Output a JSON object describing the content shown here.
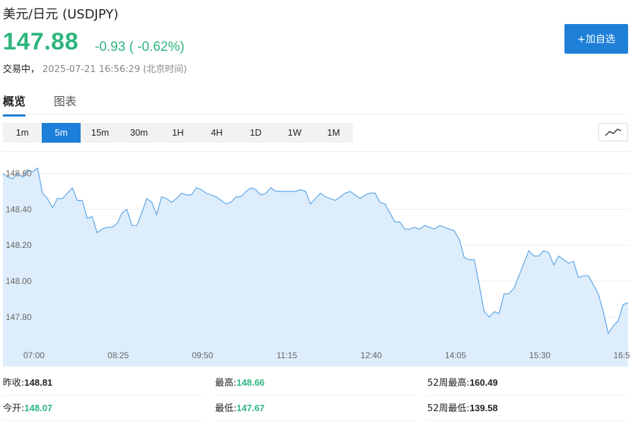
{
  "header": {
    "name": "美元/日元",
    "code": "(USDJPY)",
    "price": "147.88",
    "change": "-0.93 ( -0.62%)",
    "status": "交易中，",
    "timestamp": "2025-07-21 16:56:29 (北京时间)",
    "watch_button": "+加自选"
  },
  "tabs": [
    {
      "label": "概览",
      "active": true
    },
    {
      "label": "图表",
      "active": false
    }
  ],
  "periods": [
    {
      "label": "1m",
      "active": false
    },
    {
      "label": "5m",
      "active": true
    },
    {
      "label": "15m",
      "active": false
    },
    {
      "label": "30m",
      "active": false
    },
    {
      "label": "1H",
      "active": false
    },
    {
      "label": "4H",
      "active": false
    },
    {
      "label": "1D",
      "active": false
    },
    {
      "label": "1W",
      "active": false
    },
    {
      "label": "1M",
      "active": false
    }
  ],
  "chart_type_icon": "line-chart-icon",
  "colors": {
    "accent": "#1e7fd8",
    "down": "#2eb67d",
    "line": "#5ba5e6",
    "fill": "#deedfb"
  },
  "chart_data": {
    "type": "area",
    "yticks": [
      "148.60",
      "148.40",
      "148.20",
      "148.00",
      "147.80"
    ],
    "ytick_values": [
      148.6,
      148.4,
      148.2,
      148.0,
      147.8
    ],
    "xticks": [
      "07:00",
      "08:25",
      "09:50",
      "11:15",
      "12:40",
      "14:05",
      "15:30",
      "16:5"
    ],
    "ylim": [
      147.63,
      148.72
    ],
    "grid": true,
    "values": [
      148.6,
      148.58,
      148.57,
      148.6,
      148.58,
      148.62,
      148.61,
      148.63,
      148.49,
      148.46,
      148.41,
      148.46,
      148.46,
      148.49,
      148.52,
      148.45,
      148.45,
      148.35,
      148.36,
      148.27,
      148.29,
      148.3,
      148.3,
      148.32,
      148.38,
      148.4,
      148.31,
      148.31,
      148.38,
      148.46,
      148.44,
      148.37,
      148.47,
      148.46,
      148.44,
      148.46,
      148.49,
      148.48,
      148.48,
      148.52,
      148.51,
      148.49,
      148.48,
      148.47,
      148.45,
      148.43,
      148.44,
      148.47,
      148.47,
      148.5,
      148.52,
      148.51,
      148.48,
      148.49,
      148.52,
      148.5,
      148.5,
      148.5,
      148.5,
      148.5,
      148.51,
      148.5,
      148.43,
      148.46,
      148.49,
      148.47,
      148.46,
      148.45,
      148.47,
      148.49,
      148.5,
      148.48,
      148.46,
      148.48,
      148.49,
      148.49,
      148.44,
      148.43,
      148.38,
      148.33,
      148.33,
      148.29,
      148.29,
      148.3,
      148.29,
      148.31,
      148.3,
      148.29,
      148.31,
      148.3,
      148.29,
      148.28,
      148.23,
      148.13,
      148.12,
      148.12,
      147.98,
      147.83,
      147.8,
      147.83,
      147.82,
      147.93,
      147.93,
      147.96,
      148.03,
      148.1,
      148.17,
      148.14,
      148.14,
      148.17,
      148.16,
      148.09,
      148.14,
      148.12,
      148.1,
      148.11,
      148.02,
      148.03,
      148.03,
      147.98,
      147.93,
      147.83,
      147.71,
      147.75,
      147.78,
      147.87,
      147.88
    ]
  },
  "stats": [
    {
      "label": "昨收:",
      "value": "148.81",
      "green": false
    },
    {
      "label": "最高:",
      "value": "148.66",
      "green": true
    },
    {
      "label": "52周最高:",
      "value": "160.49",
      "green": false
    },
    {
      "label": "今开:",
      "value": "148.07",
      "green": true
    },
    {
      "label": "最低:",
      "value": "147.67",
      "green": true
    },
    {
      "label": "52周最低:",
      "value": "139.58",
      "green": false
    }
  ]
}
